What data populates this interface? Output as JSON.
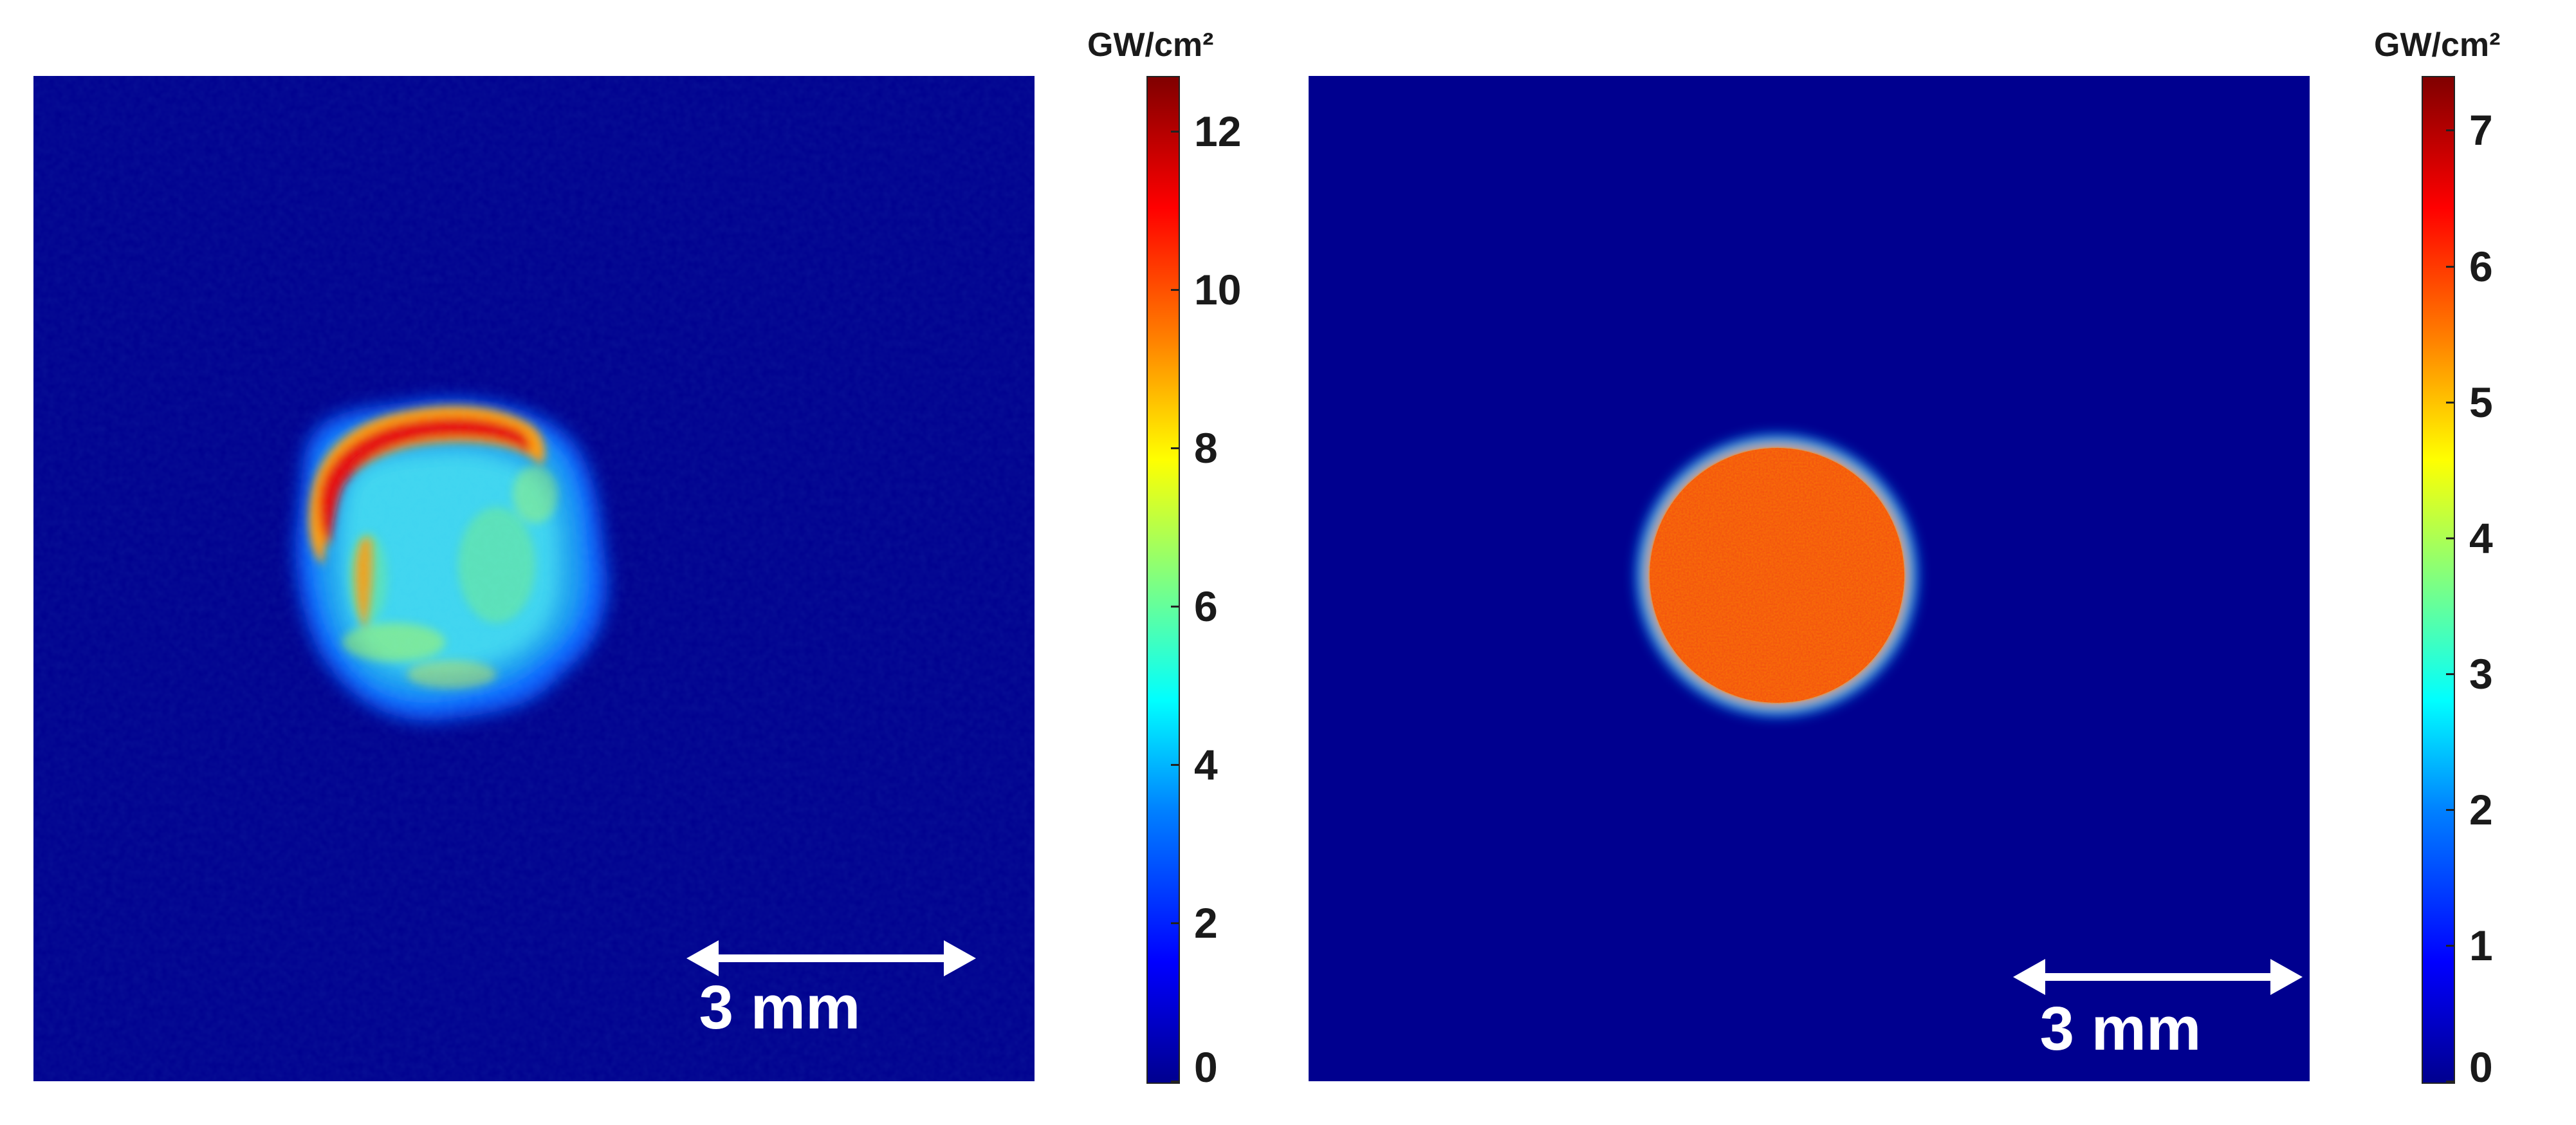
{
  "panels": [
    {
      "scale_bar_label": "3 mm",
      "colorbar": {
        "unit": "GW/cm²",
        "ticks": [
          "0",
          "2",
          "4",
          "6",
          "8",
          "10",
          "12"
        ],
        "max": 12.7
      }
    },
    {
      "scale_bar_label": "3 mm",
      "colorbar": {
        "unit": "GW/cm²",
        "ticks": [
          "0",
          "1",
          "2",
          "3",
          "4",
          "5",
          "6",
          "7"
        ],
        "max": 7.4
      }
    }
  ],
  "colors": {
    "background_field": "#00008f",
    "scale_bar": "#ffffff",
    "colormap": "jet"
  }
}
